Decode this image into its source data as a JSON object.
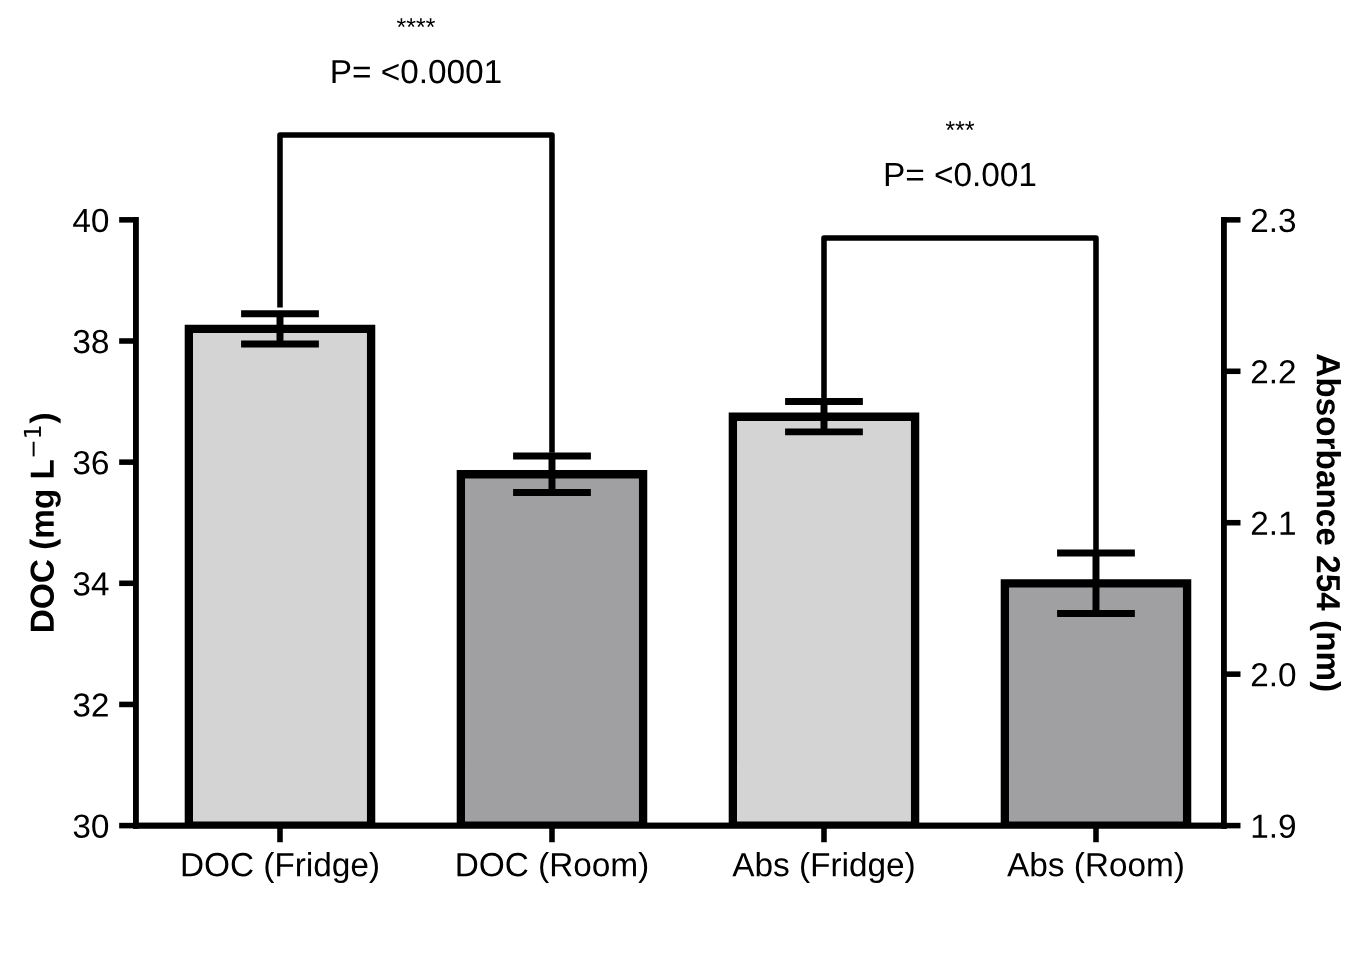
{
  "chart_data": {
    "type": "bar",
    "categories": [
      "DOC (Fridge)",
      "DOC (Room)",
      "Abs (Fridge)",
      "Abs (Room)"
    ],
    "series": [
      {
        "values": [
          38.2,
          35.8,
          null,
          null
        ],
        "colors": [
          "#d4d4d4",
          "#a0a0a2",
          null,
          null
        ],
        "errors": [
          0.25,
          0.3,
          null,
          null
        ]
      },
      {
        "axis": "y2",
        "values": [
          null,
          null,
          2.17,
          2.06
        ],
        "colors": [
          null,
          null,
          "#d4d4d4",
          "#a0a0a2"
        ],
        "errors": [
          null,
          null,
          0.01,
          0.02
        ]
      }
    ],
    "ylabel": "DOC (mg L$^{−1}$)",
    "y2label": "Absorbance 254 (nm)",
    "ylim": [
      30,
      40
    ],
    "yticks": [
      30,
      32,
      34,
      36,
      38,
      40
    ],
    "y2lim": [
      1.9,
      2.3
    ],
    "y2ticks": [
      {
        "value": 1.9,
        "label": "1.9"
      },
      {
        "value": 2.0,
        "label": "2.0"
      },
      {
        "value": 2.1,
        "label": "2.1"
      },
      {
        "value": 2.2,
        "label": "2.2"
      },
      {
        "value": 2.3,
        "label": "2.3"
      }
    ],
    "annotations": [
      "****",
      "P= <0.0001",
      "***",
      "P= <0.001"
    ],
    "grid": false,
    "legend": false
  }
}
